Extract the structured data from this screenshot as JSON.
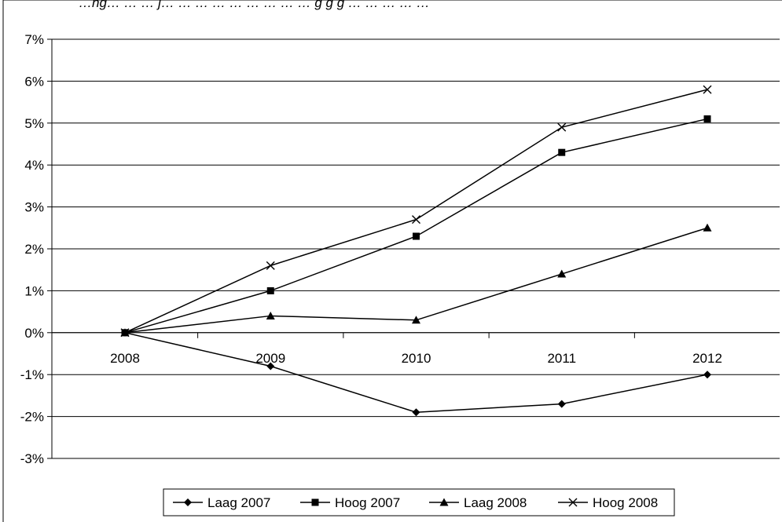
{
  "header": {
    "caption_fragment": "…ng… … … j… … … … … … … … … g g g … … … … …"
  },
  "chart_data": {
    "type": "line",
    "title": "",
    "xlabel": "",
    "ylabel": "",
    "categories": [
      "2008",
      "2009",
      "2010",
      "2011",
      "2012"
    ],
    "ylim": [
      -3,
      7
    ],
    "y_ticks": [
      "-3%",
      "-2%",
      "-1%",
      "0%",
      "1%",
      "2%",
      "3%",
      "4%",
      "5%",
      "6%",
      "7%"
    ],
    "y_tick_values": [
      -3,
      -2,
      -1,
      0,
      1,
      2,
      3,
      4,
      5,
      6,
      7
    ],
    "grid": true,
    "legend_position": "bottom",
    "series": [
      {
        "name": "Laag 2007",
        "marker": "diamond",
        "values": [
          0,
          -0.8,
          -1.9,
          -1.7,
          -1.0
        ]
      },
      {
        "name": "Hoog 2007",
        "marker": "square",
        "values": [
          0,
          1.0,
          2.3,
          4.3,
          5.1
        ]
      },
      {
        "name": "Laag 2008",
        "marker": "triangle",
        "values": [
          0,
          0.4,
          0.3,
          1.4,
          2.5
        ]
      },
      {
        "name": "Hoog 2008",
        "marker": "cross",
        "values": [
          0,
          1.6,
          2.7,
          4.9,
          5.8
        ]
      }
    ],
    "colors": {
      "line": "#000000",
      "grid": "#000000",
      "background": "#ffffff"
    }
  }
}
